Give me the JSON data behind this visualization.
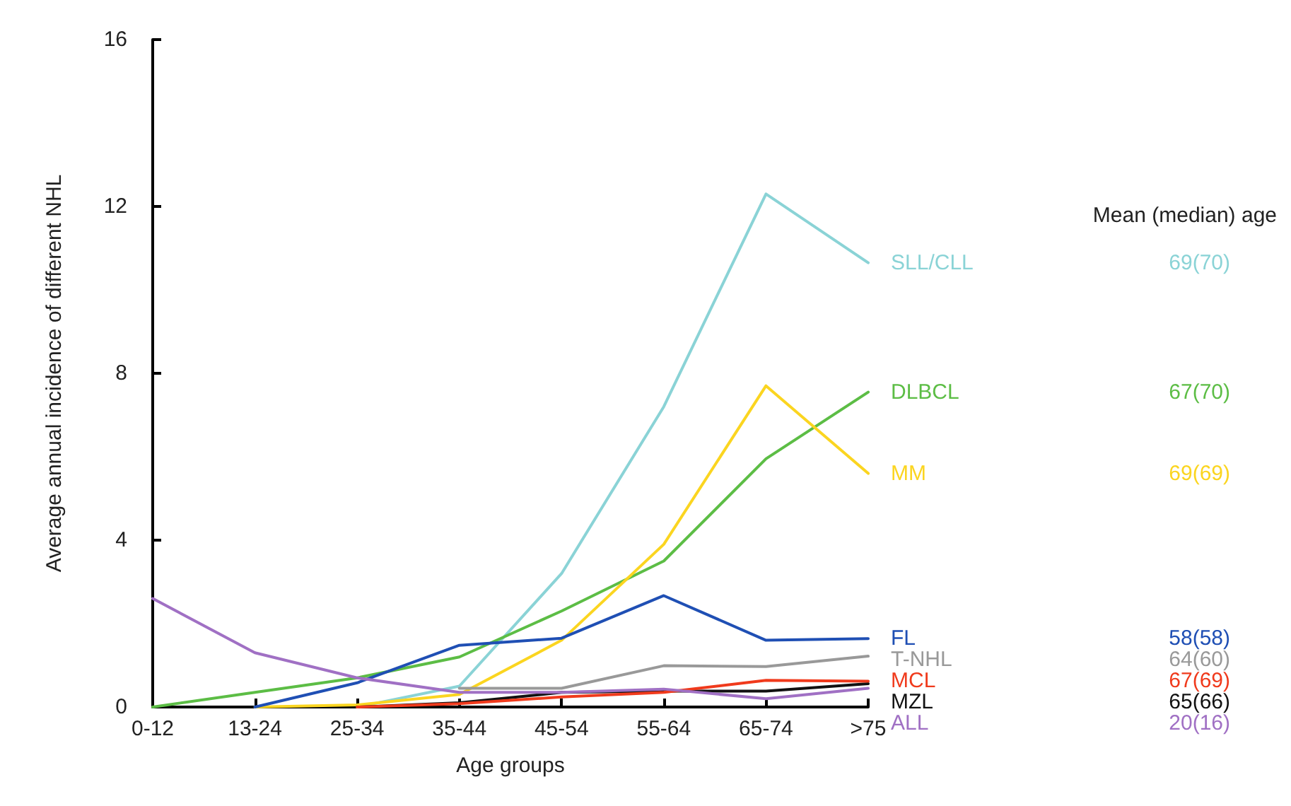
{
  "chart_data": {
    "type": "line",
    "xlabel": "Age groups",
    "ylabel": "Average annual incidence of different NHL",
    "legend_title": "Mean (median) age",
    "categories": [
      "0-12",
      "13-24",
      "25-34",
      "35-44",
      "45-54",
      "55-64",
      "65-74",
      ">75"
    ],
    "ylim": [
      0,
      16
    ],
    "yticks": [
      0,
      4,
      8,
      12,
      16
    ],
    "grid": false,
    "marker": "none",
    "line_style": "solid",
    "series": [
      {
        "name": "SLL/CLL",
        "color": "#8ad3d6",
        "values": [
          null,
          null,
          0,
          0.5,
          3.2,
          7.2,
          12.3,
          10.65
        ]
      },
      {
        "name": "DLBCL",
        "color": "#5cbd45",
        "values": [
          0,
          0.35,
          0.7,
          1.2,
          2.3,
          3.5,
          5.95,
          7.55
        ]
      },
      {
        "name": "MM",
        "color": "#fbd520",
        "values": [
          null,
          0,
          0.05,
          0.3,
          1.6,
          3.9,
          7.7,
          5.6
        ]
      },
      {
        "name": "FL",
        "color": "#1f4fb4",
        "values": [
          null,
          0,
          0.58,
          1.48,
          1.65,
          2.67,
          1.6,
          1.64
        ]
      },
      {
        "name": "MZL",
        "color": "#111111",
        "values": [
          null,
          null,
          0,
          0.1,
          0.35,
          0.38,
          0.38,
          0.56
        ]
      },
      {
        "name": "MCL",
        "color": "#f03a1c",
        "values": [
          null,
          null,
          0,
          0.08,
          0.24,
          0.35,
          0.64,
          0.62
        ]
      },
      {
        "name": "T-NHL",
        "color": "#999999",
        "values": [
          null,
          null,
          null,
          0.45,
          0.45,
          0.99,
          0.97,
          1.22
        ]
      },
      {
        "name": "ALL",
        "color": "#a070c4",
        "values": [
          2.6,
          1.3,
          0.7,
          0.35,
          0.35,
          0.43,
          0.2,
          0.45
        ]
      }
    ],
    "annotations": [
      "69(70)",
      "67(70)",
      "69(69)",
      "58(58)",
      "65(66)",
      "67(69)",
      "64(60)",
      "20(16)"
    ]
  }
}
